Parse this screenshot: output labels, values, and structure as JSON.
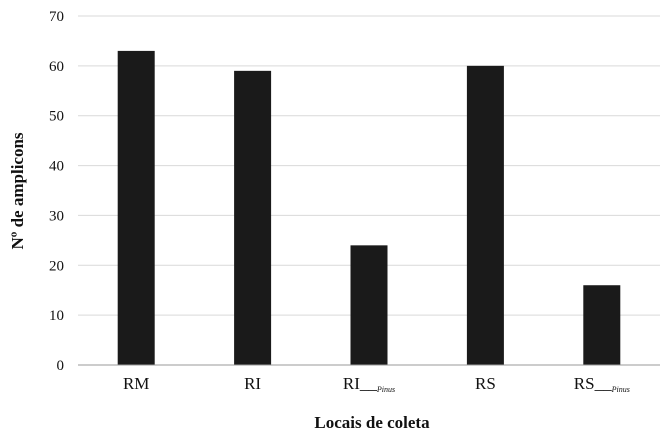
{
  "chart_data": {
    "type": "bar",
    "categories": [
      "RM",
      "RI",
      "RI__Pinus",
      "RS",
      "RS__Pinus"
    ],
    "category_labels": [
      {
        "main": "RM",
        "sub": ""
      },
      {
        "main": "RI",
        "sub": ""
      },
      {
        "main": "RI_",
        "sub": "Pinus"
      },
      {
        "main": "RS",
        "sub": ""
      },
      {
        "main": "RS_",
        "sub": "Pinus"
      }
    ],
    "values": [
      63,
      59,
      24,
      60,
      16
    ],
    "title": "",
    "xlabel": "Locais de coleta",
    "ylabel": "Nº de amplicons",
    "ylim": [
      0,
      70
    ],
    "yticks": [
      0,
      10,
      20,
      30,
      40,
      50,
      60,
      70
    ],
    "grid": true,
    "legend": "none",
    "bar_color": "#1a1a1a",
    "grid_color": "#d9d9d9"
  }
}
